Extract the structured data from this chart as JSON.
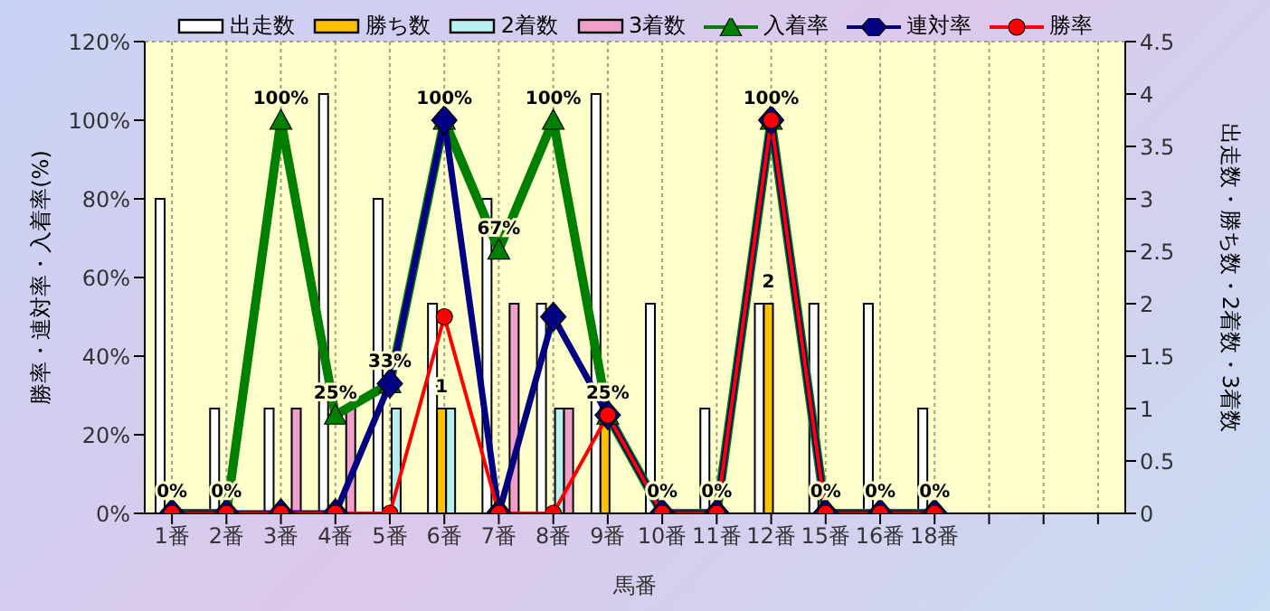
{
  "chart_data": {
    "type": "bar",
    "xlabel": "馬番",
    "ylabel": "勝率・連対率・入着率(%)",
    "y2label": "出走数・勝ち数・2着数・3着数",
    "categories": [
      "1番",
      "2番",
      "3番",
      "4番",
      "5番",
      "6番",
      "7番",
      "8番",
      "9番",
      "10番",
      "11番",
      "12番",
      "15番",
      "16番",
      "18番",
      null,
      null,
      null
    ],
    "series": [
      {
        "name": "出走数",
        "axis": "y2",
        "color": "#ffffff",
        "values": [
          3,
          1,
          1,
          4,
          3,
          2,
          3,
          2,
          4,
          2,
          1,
          2,
          2,
          2,
          1,
          null,
          null,
          null
        ]
      },
      {
        "name": "勝ち数",
        "axis": "y2",
        "color": "#ffc000",
        "values": [
          0,
          0,
          0,
          0,
          0,
          1,
          0,
          0,
          1,
          0,
          0,
          2,
          0,
          0,
          0,
          null,
          null,
          null
        ],
        "value_labels": [
          null,
          null,
          null,
          null,
          null,
          "1",
          null,
          null,
          null,
          null,
          null,
          "2",
          null,
          null,
          null,
          null,
          null,
          null
        ]
      },
      {
        "name": "2着数",
        "axis": "y2",
        "color": "#b8f0f0",
        "values": [
          0,
          0,
          0,
          0,
          1,
          1,
          0,
          1,
          0,
          0,
          0,
          0,
          0,
          0,
          0,
          null,
          null,
          null
        ]
      },
      {
        "name": "3着数",
        "axis": "y2",
        "color": "#f0a0c8",
        "values": [
          0,
          0,
          1,
          1,
          0,
          0,
          2,
          1,
          0,
          0,
          0,
          0,
          0,
          0,
          0,
          null,
          null,
          null
        ]
      },
      {
        "name": "入着率",
        "type": "line",
        "marker": "triangle",
        "color": "#008000",
        "values": [
          0,
          0,
          100,
          25,
          33,
          100,
          67,
          100,
          25,
          0,
          0,
          100,
          0,
          0,
          0,
          null,
          null,
          null
        ],
        "value_labels": [
          "0%",
          "0%",
          "100%",
          "25%",
          "33%",
          "100%",
          "67%",
          "100%",
          "25%",
          "0%",
          "0%",
          "100%",
          "0%",
          "0%",
          "0%",
          null,
          null,
          null
        ]
      },
      {
        "name": "連対率",
        "type": "line",
        "marker": "diamond",
        "color": "#000080",
        "values": [
          0,
          0,
          0,
          0,
          33,
          100,
          0,
          50,
          25,
          0,
          0,
          100,
          0,
          0,
          0,
          null,
          null,
          null
        ]
      },
      {
        "name": "勝率",
        "type": "line",
        "marker": "circle",
        "color": "#ff0000",
        "values": [
          0,
          0,
          0,
          0,
          0,
          50,
          0,
          0,
          25,
          0,
          0,
          100,
          0,
          0,
          0,
          null,
          null,
          null
        ]
      }
    ],
    "ylim": [
      0,
      120
    ],
    "yticks": [
      {
        "value": 0,
        "label": "0%"
      },
      {
        "value": 20,
        "label": "20%"
      },
      {
        "value": 40,
        "label": "40%"
      },
      {
        "value": 60,
        "label": "60%"
      },
      {
        "value": 80,
        "label": "80%"
      },
      {
        "value": 100,
        "label": "100%"
      },
      {
        "value": 120,
        "label": "120%"
      }
    ],
    "y2lim": [
      0,
      4.5
    ],
    "y2ticks": [
      0,
      0.5,
      1,
      1.5,
      2,
      2.5,
      3,
      3.5,
      4,
      4.5
    ],
    "grid": true,
    "legend": "top"
  }
}
